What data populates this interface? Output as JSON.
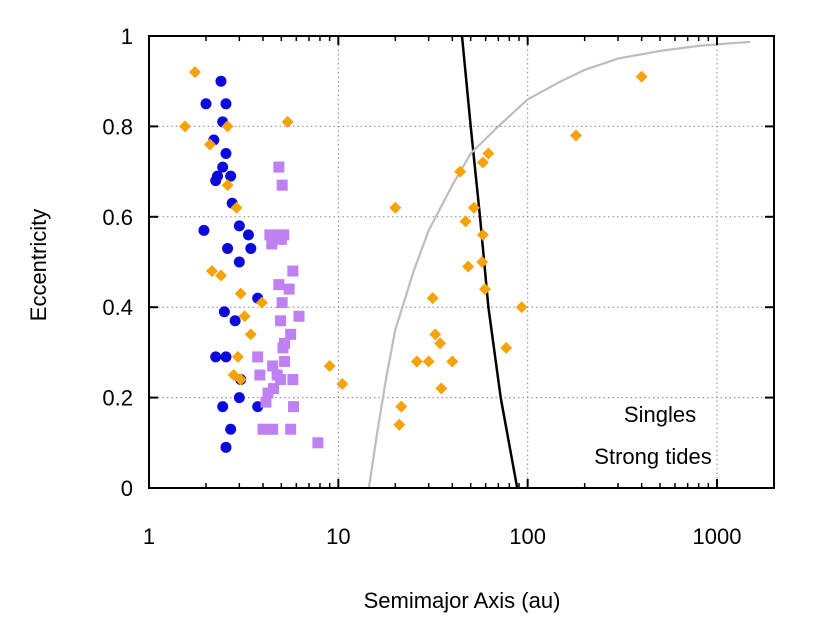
{
  "chart_data": {
    "type": "scatter",
    "xlabel": "Semimajor Axis (au)",
    "ylabel": "Eccentricity",
    "xscale": "log",
    "xlim": [
      1,
      2000
    ],
    "ylim": [
      0,
      1
    ],
    "xticks": [
      1,
      10,
      100,
      1000
    ],
    "xtick_labels": [
      "1",
      "10",
      "100",
      "1000"
    ],
    "yticks": [
      0,
      0.2,
      0.4,
      0.6,
      0.8,
      1
    ],
    "ytick_labels": [
      "0",
      "0.2",
      "0.4",
      "0.6",
      "0.8",
      "1"
    ],
    "grid": true,
    "annotations": [
      "Singles",
      "Strong tides"
    ],
    "colors": {
      "orange": "#f5a30a",
      "blue": "#0a0adc",
      "purple": "#bf80f2",
      "black_curve": "#000000",
      "gray_curve": "#bdbdbd"
    },
    "series": [
      {
        "marker": "circle",
        "color": "#0a0adc",
        "points": [
          [
            2.4,
            0.9
          ],
          [
            2.0,
            0.85
          ],
          [
            2.55,
            0.85
          ],
          [
            2.2,
            0.77
          ],
          [
            2.45,
            0.81
          ],
          [
            2.55,
            0.74
          ],
          [
            2.45,
            0.71
          ],
          [
            2.3,
            0.69
          ],
          [
            2.7,
            0.69
          ],
          [
            2.25,
            0.68
          ],
          [
            2.75,
            0.63
          ],
          [
            1.95,
            0.57
          ],
          [
            3.0,
            0.58
          ],
          [
            3.35,
            0.56
          ],
          [
            2.6,
            0.53
          ],
          [
            3.45,
            0.53
          ],
          [
            3.0,
            0.5
          ],
          [
            3.75,
            0.42
          ],
          [
            2.5,
            0.39
          ],
          [
            2.85,
            0.37
          ],
          [
            2.25,
            0.29
          ],
          [
            2.55,
            0.29
          ],
          [
            3.05,
            0.24
          ],
          [
            3.0,
            0.2
          ],
          [
            3.75,
            0.18
          ],
          [
            2.45,
            0.18
          ],
          [
            2.7,
            0.13
          ],
          [
            2.55,
            0.09
          ]
        ]
      },
      {
        "marker": "square",
        "color": "#bf80f2",
        "points": [
          [
            4.85,
            0.71
          ],
          [
            5.05,
            0.67
          ],
          [
            4.35,
            0.56
          ],
          [
            4.85,
            0.56
          ],
          [
            5.15,
            0.56
          ],
          [
            4.45,
            0.54
          ],
          [
            5.0,
            0.55
          ],
          [
            5.75,
            0.48
          ],
          [
            4.85,
            0.45
          ],
          [
            5.5,
            0.44
          ],
          [
            5.05,
            0.41
          ],
          [
            6.2,
            0.38
          ],
          [
            4.95,
            0.37
          ],
          [
            5.6,
            0.34
          ],
          [
            5.2,
            0.32
          ],
          [
            5.1,
            0.31
          ],
          [
            3.75,
            0.29
          ],
          [
            5.2,
            0.28
          ],
          [
            4.5,
            0.27
          ],
          [
            4.75,
            0.25
          ],
          [
            3.85,
            0.25
          ],
          [
            4.95,
            0.24
          ],
          [
            5.75,
            0.24
          ],
          [
            4.55,
            0.22
          ],
          [
            4.25,
            0.21
          ],
          [
            4.15,
            0.19
          ],
          [
            5.8,
            0.18
          ],
          [
            4.0,
            0.13
          ],
          [
            4.5,
            0.13
          ],
          [
            5.6,
            0.13
          ],
          [
            7.8,
            0.1
          ]
        ]
      },
      {
        "marker": "diamond",
        "color": "#f5a30a",
        "points": [
          [
            1.75,
            0.92
          ],
          [
            1.55,
            0.8
          ],
          [
            2.6,
            0.8
          ],
          [
            2.1,
            0.76
          ],
          [
            5.4,
            0.81
          ],
          [
            2.6,
            0.67
          ],
          [
            2.9,
            0.62
          ],
          [
            2.15,
            0.48
          ],
          [
            2.4,
            0.47
          ],
          [
            3.05,
            0.43
          ],
          [
            3.2,
            0.38
          ],
          [
            3.45,
            0.34
          ],
          [
            3.95,
            0.41
          ],
          [
            2.95,
            0.29
          ],
          [
            2.8,
            0.25
          ],
          [
            3.05,
            0.24
          ],
          [
            9.0,
            0.27
          ],
          [
            10.5,
            0.23
          ],
          [
            20.0,
            0.62
          ],
          [
            21.5,
            0.18
          ],
          [
            21.0,
            0.14
          ],
          [
            26.0,
            0.28
          ],
          [
            30.0,
            0.28
          ],
          [
            31.5,
            0.42
          ],
          [
            32.5,
            0.34
          ],
          [
            34.5,
            0.32
          ],
          [
            35.0,
            0.22
          ],
          [
            40.0,
            0.28
          ],
          [
            44.0,
            0.7
          ],
          [
            47.0,
            0.59
          ],
          [
            48.5,
            0.49
          ],
          [
            52.0,
            0.62
          ],
          [
            58.0,
            0.72
          ],
          [
            62.0,
            0.74
          ],
          [
            58.0,
            0.56
          ],
          [
            57.5,
            0.5
          ],
          [
            59.5,
            0.44
          ],
          [
            77.0,
            0.31
          ],
          [
            93.0,
            0.4
          ],
          [
            180.0,
            0.78
          ],
          [
            400.0,
            0.91
          ]
        ]
      }
    ],
    "curves": [
      {
        "color": "#000000",
        "points": [
          [
            45,
            1.0
          ],
          [
            50,
            0.8
          ],
          [
            56,
            0.6
          ],
          [
            62,
            0.4
          ],
          [
            72,
            0.2
          ],
          [
            88,
            0.0
          ]
        ]
      },
      {
        "color": "#bdbdbd",
        "points": [
          [
            14.5,
            0.0
          ],
          [
            16,
            0.12
          ],
          [
            18,
            0.25
          ],
          [
            20,
            0.35
          ],
          [
            25,
            0.48
          ],
          [
            30,
            0.57
          ],
          [
            40,
            0.67
          ],
          [
            50,
            0.74
          ],
          [
            70,
            0.8
          ],
          [
            100,
            0.86
          ],
          [
            150,
            0.9
          ],
          [
            200,
            0.925
          ],
          [
            300,
            0.95
          ],
          [
            500,
            0.967
          ],
          [
            800,
            0.978
          ],
          [
            1200,
            0.984
          ],
          [
            1500,
            0.987
          ]
        ]
      }
    ]
  }
}
